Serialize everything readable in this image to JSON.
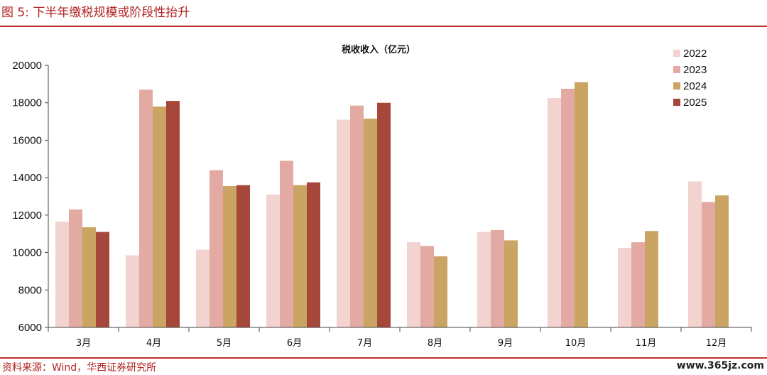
{
  "header": {
    "title": "图 5:  下半年缴税规模或阶段性抬升"
  },
  "footer": {
    "source": "资料来源：Wind，华西证券研究所",
    "watermark": "www.365jz.com"
  },
  "colors": {
    "accent": "#c0312b",
    "series": [
      "#f3d3d0",
      "#e2aaa3",
      "#c9a463",
      "#a5473b"
    ]
  },
  "chart_data": {
    "type": "bar",
    "title": "税收收入（亿元）",
    "categories": [
      "3月",
      "4月",
      "5月",
      "6月",
      "7月",
      "8月",
      "9月",
      "10月",
      "11月",
      "12月"
    ],
    "series": [
      {
        "name": "2022",
        "values": [
          11650,
          9850,
          10150,
          13100,
          17100,
          10550,
          11100,
          18250,
          10250,
          13800
        ]
      },
      {
        "name": "2023",
        "values": [
          12300,
          18700,
          14400,
          14900,
          17850,
          10350,
          11200,
          18750,
          10550,
          12700
        ]
      },
      {
        "name": "2024",
        "values": [
          11350,
          17800,
          13550,
          13600,
          17150,
          9800,
          10650,
          19100,
          11150,
          13050
        ]
      },
      {
        "name": "2025",
        "values": [
          11100,
          18100,
          13600,
          13750,
          18000,
          null,
          null,
          null,
          null,
          null
        ]
      }
    ],
    "ylim": [
      6000,
      20000
    ],
    "yticks": [
      6000,
      8000,
      10000,
      12000,
      14000,
      16000,
      18000,
      20000
    ],
    "grid": false,
    "legend_position": "top-right"
  }
}
